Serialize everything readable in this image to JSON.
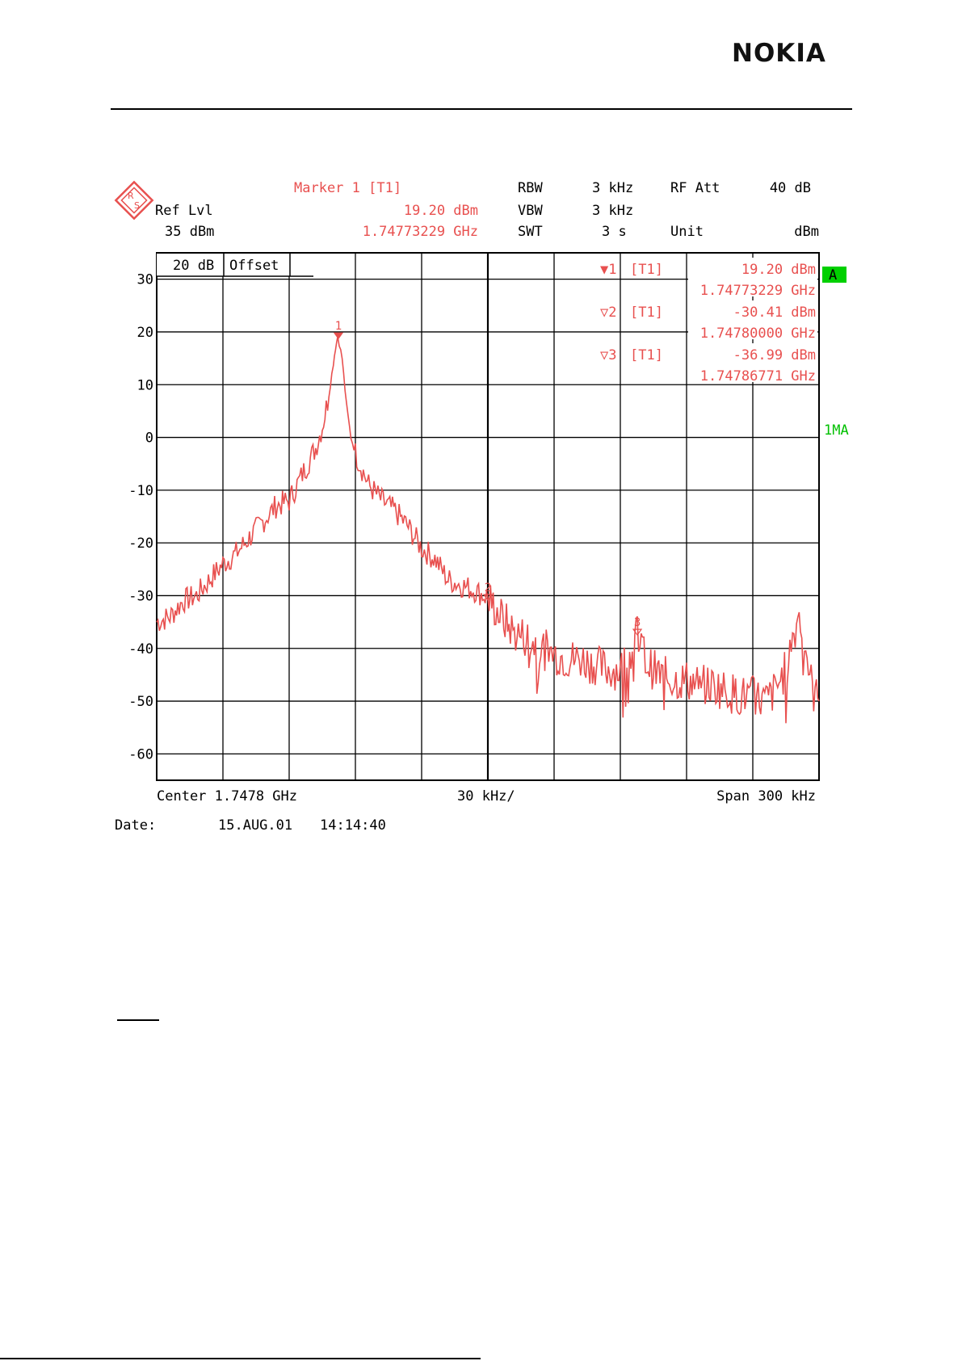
{
  "page": {
    "logo": "NOKIA"
  },
  "colors": {
    "trace": "#e8504f",
    "accent_green": "#00c000",
    "grid": "#000000"
  },
  "analyzer": {
    "brand_icon": "rohde-schwarz-logo-icon",
    "ref_lvl_label": "Ref Lvl",
    "ref_lvl_value": "35 dBm",
    "marker_title": "Marker 1 [T1]",
    "marker_level": "19.20 dBm",
    "marker_freq": "1.74773229 GHz",
    "rbw_label": "RBW",
    "rbw_value": "3 kHz",
    "vbw_label": "VBW",
    "vbw_value": "3 kHz",
    "swt_label": "SWT",
    "swt_value": "3 s",
    "rfatt_label": "RF Att",
    "rfatt_value": "40 dB",
    "unit_label": "Unit",
    "unit_value": "dBm",
    "offset_db": "20 dB",
    "offset_label": "Offset",
    "side_a": "A",
    "side_1ma": "1MA",
    "center_label": "Center 1.7478 GHz",
    "div_label": "30 kHz/",
    "span_label": "Span 300 kHz",
    "date_label": "Date:",
    "date_value": "15.AUG.01",
    "time_value": "14:14:40"
  },
  "chart_data": {
    "type": "line",
    "xlabel": "",
    "ylabel": "",
    "x_divisions": 10,
    "xlim_khz": [
      -150,
      150
    ],
    "ylim": [
      -65,
      35
    ],
    "yticks": [
      30,
      20,
      10,
      0,
      -10,
      -20,
      -30,
      -40,
      -50,
      -60
    ],
    "grid": true,
    "markers": [
      {
        "id": "1",
        "symbol": "▼1",
        "trace": "[T1]",
        "level": "19.20 dBm",
        "freq": "1.74773229 GHz",
        "x": -67.7,
        "y": 19.2
      },
      {
        "id": "2",
        "symbol": "▽2",
        "trace": "[T1]",
        "level": "-30.41 dBm",
        "freq": "1.74780000 GHz",
        "x": 0,
        "y": -30.41
      },
      {
        "id": "3",
        "symbol": "▽3",
        "trace": "[T1]",
        "level": "-36.99 dBm",
        "freq": "1.74786771 GHz",
        "x": 67.7,
        "y": -36.99
      }
    ],
    "series": [
      {
        "name": "",
        "x": [
          -150,
          -144,
          -138,
          -132,
          -126,
          -120,
          -114,
          -108,
          -102,
          -96,
          -90,
          -84,
          -78,
          -75,
          -72,
          -70,
          -69,
          -68,
          -66,
          -64,
          -62,
          -60,
          -57,
          -54,
          -48,
          -42,
          -36,
          -30,
          -24,
          -18,
          -12,
          -6,
          0,
          6,
          12,
          18,
          24,
          30,
          36,
          42,
          48,
          54,
          60,
          66,
          67.7,
          70,
          72,
          78,
          84,
          90,
          96,
          102,
          108,
          114,
          120,
          126,
          130,
          135,
          138,
          141,
          144,
          147,
          150
        ],
        "y": [
          -35,
          -34,
          -31,
          -30,
          -27,
          -24,
          -22,
          -19,
          -16,
          -13,
          -12,
          -7,
          -2,
          2,
          8,
          14,
          17,
          19.2,
          15,
          6,
          0,
          -3,
          -6,
          -9,
          -12,
          -14,
          -17,
          -21,
          -23,
          -27,
          -28,
          -29,
          -30.4,
          -34,
          -37,
          -38,
          -40,
          -41,
          -42,
          -42,
          -43,
          -44,
          -44,
          -40,
          -37,
          -40,
          -43,
          -45,
          -46,
          -46,
          -47,
          -47,
          -48,
          -49,
          -49,
          -50,
          -48,
          -44,
          -38,
          -33.5,
          -40,
          -48,
          -50
        ]
      }
    ]
  }
}
